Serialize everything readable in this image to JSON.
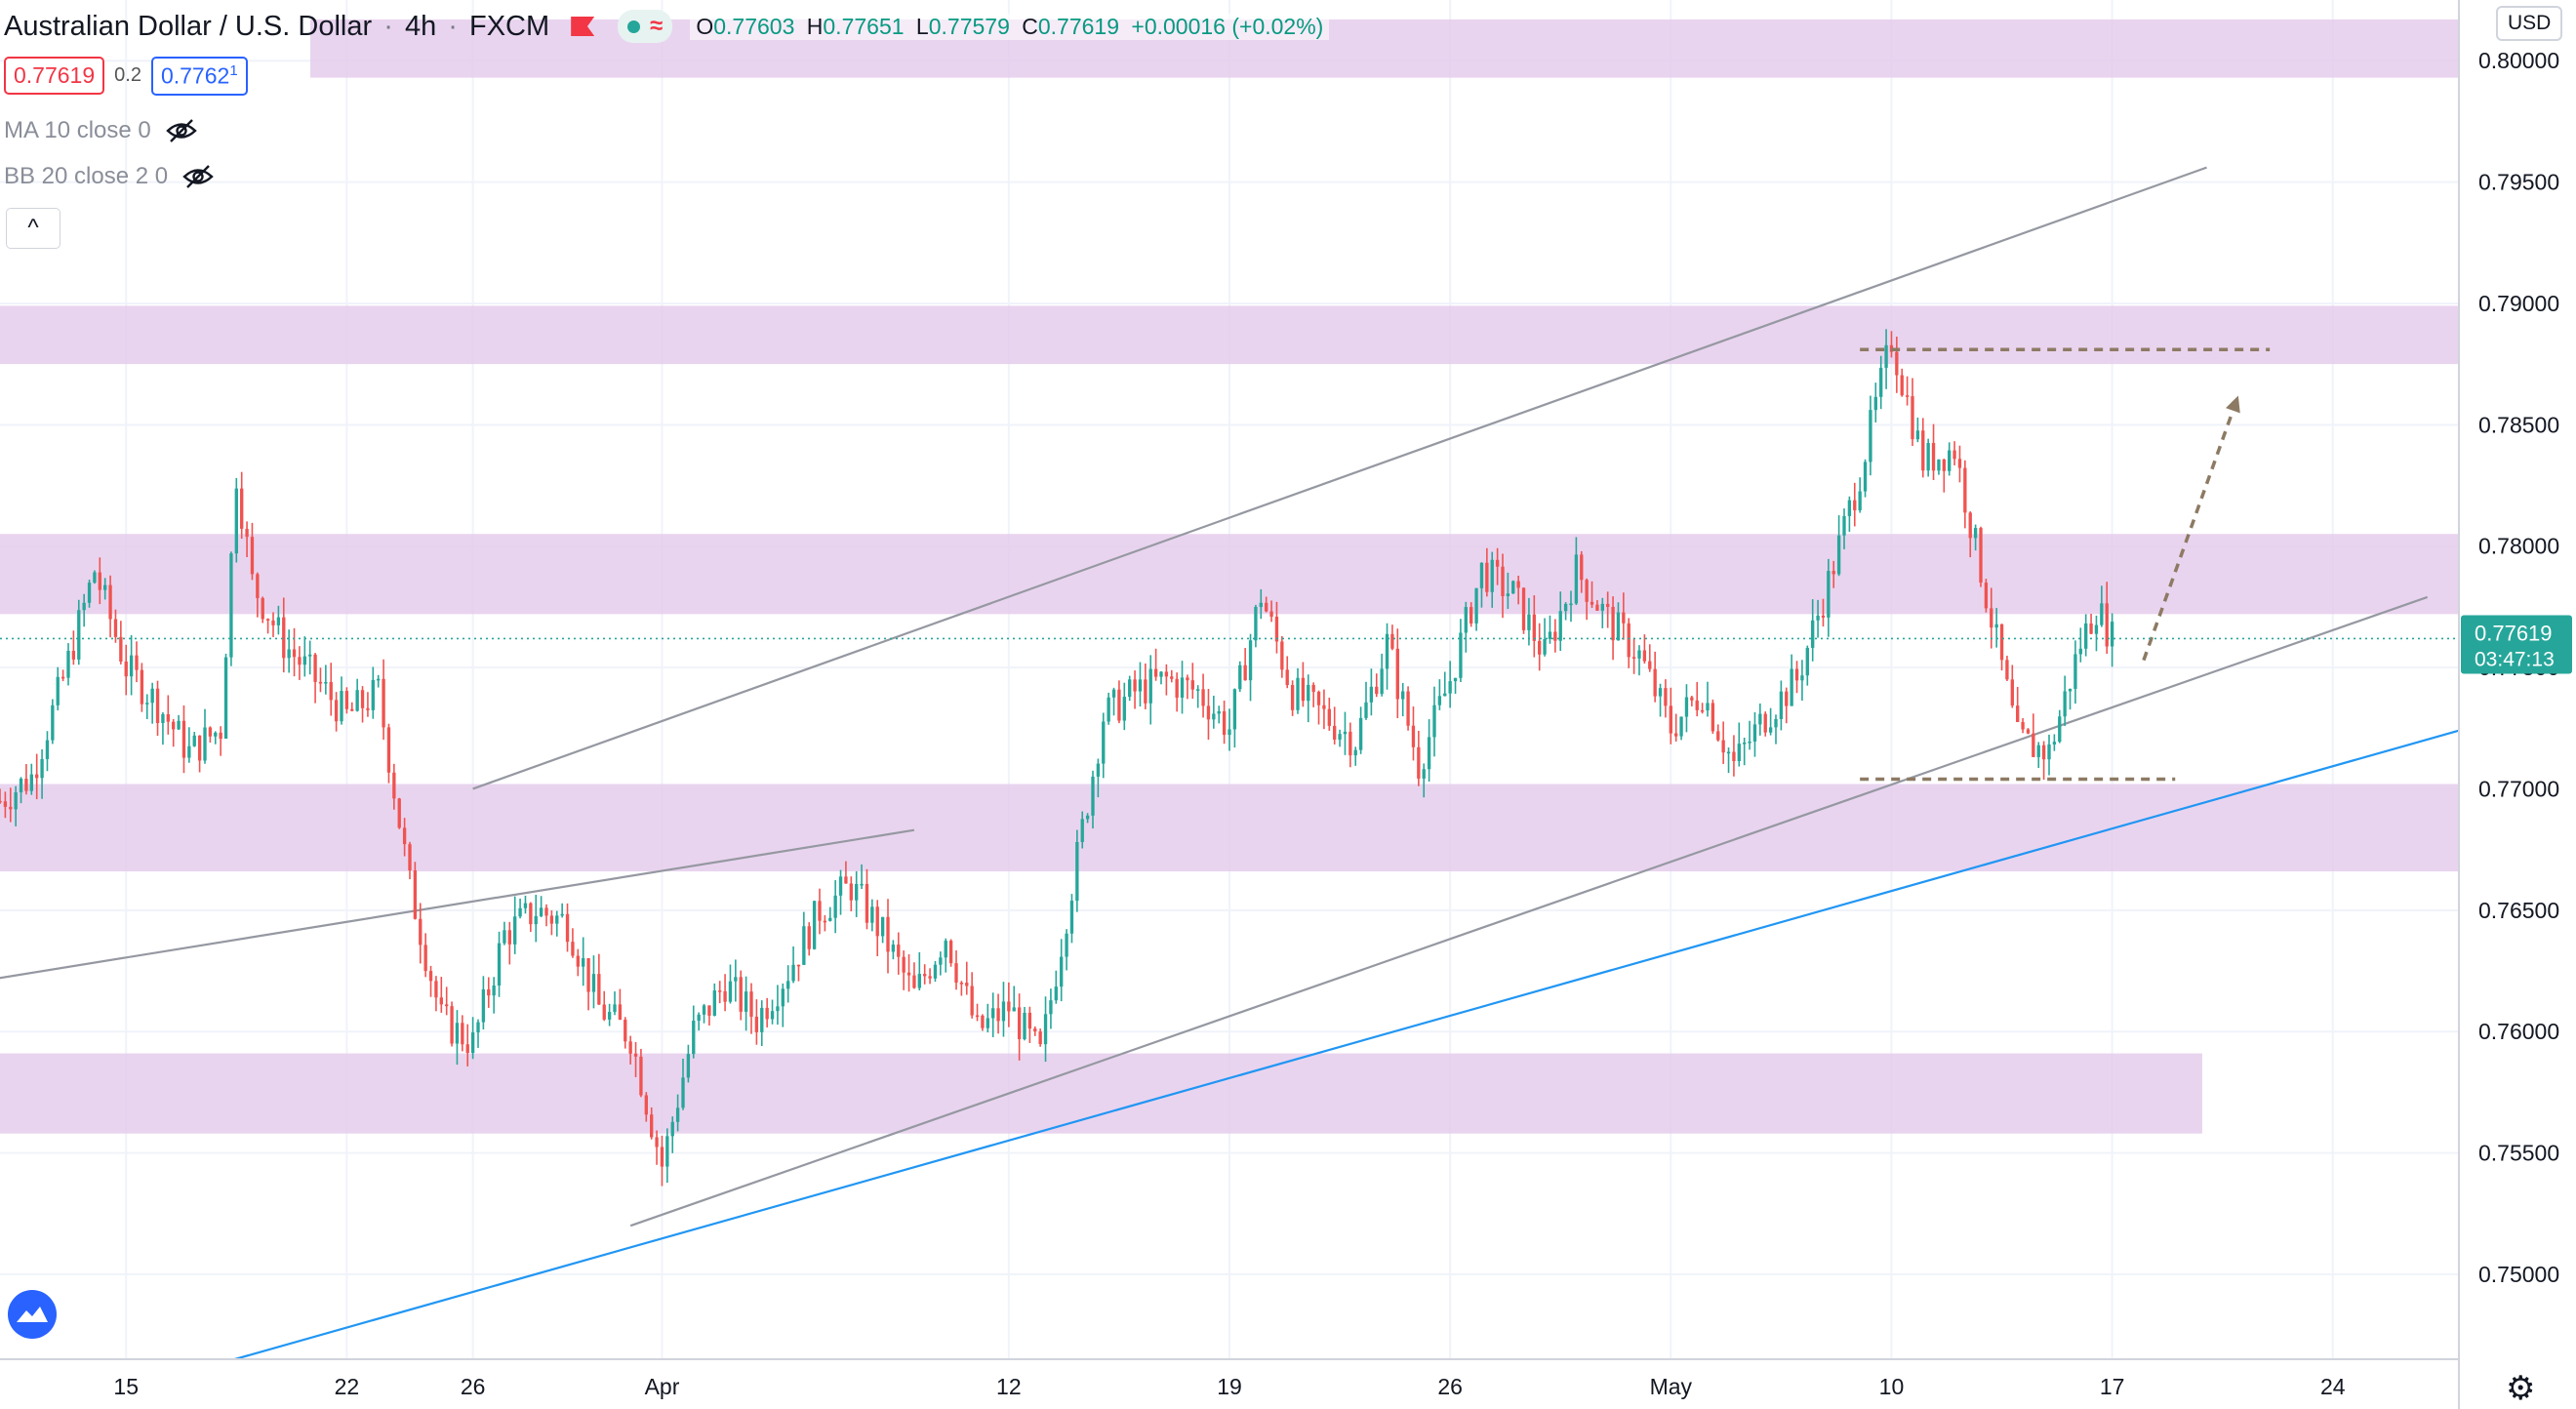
{
  "header": {
    "symbol_title": "Australian Dollar / U.S. Dollar",
    "interval": "4h",
    "exchange": "FXCM",
    "ohlc": {
      "open_label": "O",
      "open": "0.77603",
      "high_label": "H",
      "high": "0.77651",
      "low_label": "L",
      "low": "0.77579",
      "close_label": "C",
      "close": "0.77619",
      "change": "+0.00016 (+0.02%)"
    },
    "bid": "0.77619",
    "spread": "0.2",
    "ask_main": "0.7762",
    "ask_sup": "1"
  },
  "indicators": [
    {
      "label": "MA 10 close 0",
      "icon": "eye-hidden-icon"
    },
    {
      "label": "BB 20 close 2 0",
      "icon": "eye-hidden-icon"
    }
  ],
  "collapse_icon": "^",
  "currency": "USD",
  "price_axis": {
    "ticks": [
      "0.80000",
      "0.79500",
      "0.79000",
      "0.78500",
      "0.78000",
      "0.77500",
      "0.77000",
      "0.76500",
      "0.76000",
      "0.75500",
      "0.75000"
    ],
    "current_price": "0.77619",
    "countdown": "03:47:13"
  },
  "time_axis": {
    "ticks": [
      "15",
      "22",
      "26",
      "Apr",
      "12",
      "19",
      "26",
      "May",
      "10",
      "17",
      "24"
    ]
  },
  "colors": {
    "up": "#26a69a",
    "down": "#ef5350",
    "zone": "#e3c8ea",
    "channel": "#9598a1",
    "support": "#2196f3",
    "projection": "#8d7a63"
  },
  "chart_data": {
    "type": "candlestick",
    "title": "Australian Dollar / U.S. Dollar",
    "x_range": [
      "2021-03-11",
      "2021-05-28"
    ],
    "y_range": [
      0.7465,
      0.8025
    ],
    "last_price": 0.77619,
    "zones": [
      {
        "from": 0.7993,
        "to": 0.8017
      },
      {
        "from": 0.7875,
        "to": 0.7899
      },
      {
        "from": 0.7772,
        "to": 0.7805
      },
      {
        "from": 0.7666,
        "to": 0.7702
      },
      {
        "from": 0.7558,
        "to": 0.7591
      }
    ],
    "lines": [
      {
        "kind": "channel-upper",
        "from": [
          "2021-03-26",
          0.77
        ],
        "to": [
          "2021-05-20",
          0.7956
        ]
      },
      {
        "kind": "channel-lower",
        "from": [
          "2021-03-31",
          0.752
        ],
        "to": [
          "2021-05-27",
          0.7779
        ]
      },
      {
        "kind": "old-trend",
        "from": [
          "2021-03-10",
          0.762
        ],
        "to": [
          "2021-04-09",
          0.7683
        ]
      },
      {
        "kind": "support",
        "from": [
          "2021-03-13",
          0.7445
        ],
        "to": [
          "2021-05-28",
          0.7724
        ]
      }
    ],
    "dashed_levels": [
      {
        "value": 0.7881,
        "from": "2021-05-09",
        "to": "2021-05-22"
      },
      {
        "value": 0.7704,
        "from": "2021-05-09",
        "to": "2021-05-19"
      }
    ],
    "projection_arrow": {
      "from": [
        "2021-05-18",
        0.7753
      ],
      "to": [
        "2021-05-21",
        0.7862
      ]
    },
    "path": [
      [
        "2021-03-11",
        0.7695
      ],
      [
        "2021-03-12",
        0.7705
      ],
      [
        "2021-03-13",
        0.7745
      ],
      [
        "2021-03-14",
        0.779
      ],
      [
        "2021-03-15",
        0.775
      ],
      [
        "2021-03-16",
        0.7735
      ],
      [
        "2021-03-17",
        0.7715
      ],
      [
        "2021-03-18",
        0.7725
      ],
      [
        "2021-03-18T12",
        0.783
      ],
      [
        "2021-03-19",
        0.7785
      ],
      [
        "2021-03-20",
        0.776
      ],
      [
        "2021-03-21",
        0.7745
      ],
      [
        "2021-03-22",
        0.773
      ],
      [
        "2021-03-23",
        0.774
      ],
      [
        "2021-03-24",
        0.766
      ],
      [
        "2021-03-25",
        0.7605
      ],
      [
        "2021-03-26",
        0.7595
      ],
      [
        "2021-03-27",
        0.764
      ],
      [
        "2021-03-28",
        0.765
      ],
      [
        "2021-03-29",
        0.7645
      ],
      [
        "2021-03-30",
        0.761
      ],
      [
        "2021-03-31",
        0.7598
      ],
      [
        "2021-04-01",
        0.7545
      ],
      [
        "2021-04-02",
        0.76
      ],
      [
        "2021-04-03",
        0.762
      ],
      [
        "2021-04-04",
        0.7605
      ],
      [
        "2021-04-05",
        0.7625
      ],
      [
        "2021-04-06",
        0.765
      ],
      [
        "2021-04-07",
        0.766
      ],
      [
        "2021-04-08",
        0.764
      ],
      [
        "2021-04-09",
        0.7615
      ],
      [
        "2021-04-10",
        0.764
      ],
      [
        "2021-04-11",
        0.76
      ],
      [
        "2021-04-12",
        0.761
      ],
      [
        "2021-04-13",
        0.759
      ],
      [
        "2021-04-14",
        0.766
      ],
      [
        "2021-04-15",
        0.773
      ],
      [
        "2021-04-16",
        0.774
      ],
      [
        "2021-04-17",
        0.7745
      ],
      [
        "2021-04-18",
        0.774
      ],
      [
        "2021-04-19",
        0.7725
      ],
      [
        "2021-04-20",
        0.778
      ],
      [
        "2021-04-21",
        0.774
      ],
      [
        "2021-04-22",
        0.773
      ],
      [
        "2021-04-23",
        0.772
      ],
      [
        "2021-04-24",
        0.776
      ],
      [
        "2021-04-25",
        0.771
      ],
      [
        "2021-04-26",
        0.7745
      ],
      [
        "2021-04-27",
        0.779
      ],
      [
        "2021-04-28",
        0.778
      ],
      [
        "2021-04-29",
        0.7755
      ],
      [
        "2021-04-30",
        0.779
      ],
      [
        "2021-05-01",
        0.777
      ],
      [
        "2021-05-02",
        0.7755
      ],
      [
        "2021-05-03",
        0.7725
      ],
      [
        "2021-05-04",
        0.774
      ],
      [
        "2021-05-05",
        0.771
      ],
      [
        "2021-05-06",
        0.773
      ],
      [
        "2021-05-07",
        0.7745
      ],
      [
        "2021-05-08",
        0.7785
      ],
      [
        "2021-05-09",
        0.783
      ],
      [
        "2021-05-10",
        0.7885
      ],
      [
        "2021-05-11",
        0.7835
      ],
      [
        "2021-05-12",
        0.784
      ],
      [
        "2021-05-13",
        0.778
      ],
      [
        "2021-05-14",
        0.772
      ],
      [
        "2021-05-15",
        0.7715
      ],
      [
        "2021-05-16",
        0.776
      ],
      [
        "2021-05-16T12",
        0.7775
      ],
      [
        "2021-05-17",
        0.7762
      ]
    ]
  }
}
